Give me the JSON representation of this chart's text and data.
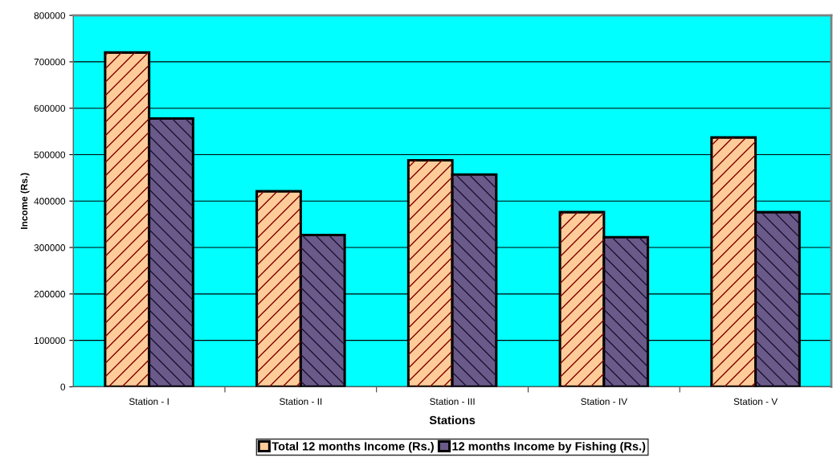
{
  "chart_data": {
    "type": "bar",
    "xlabel": "Stations",
    "ylabel": "Income (Rs.)",
    "categories": [
      "Station - I",
      "Station - II",
      "Station - III",
      "Station - IV",
      "Station - V"
    ],
    "series": [
      {
        "name": "Total 12 months Income (Rs.)",
        "color": "#ffcc99",
        "values": [
          720000,
          421000,
          488000,
          376000,
          537000
        ]
      },
      {
        "name": "12 months Income by Fishing (Rs.)",
        "color": "#6a5a8a",
        "values": [
          578000,
          327000,
          457000,
          322000,
          376000
        ]
      }
    ],
    "ylim": [
      0,
      800000
    ],
    "yticks": [
      0,
      100000,
      200000,
      300000,
      400000,
      500000,
      600000,
      700000,
      800000
    ],
    "grid": "y",
    "legend": "bottom"
  }
}
